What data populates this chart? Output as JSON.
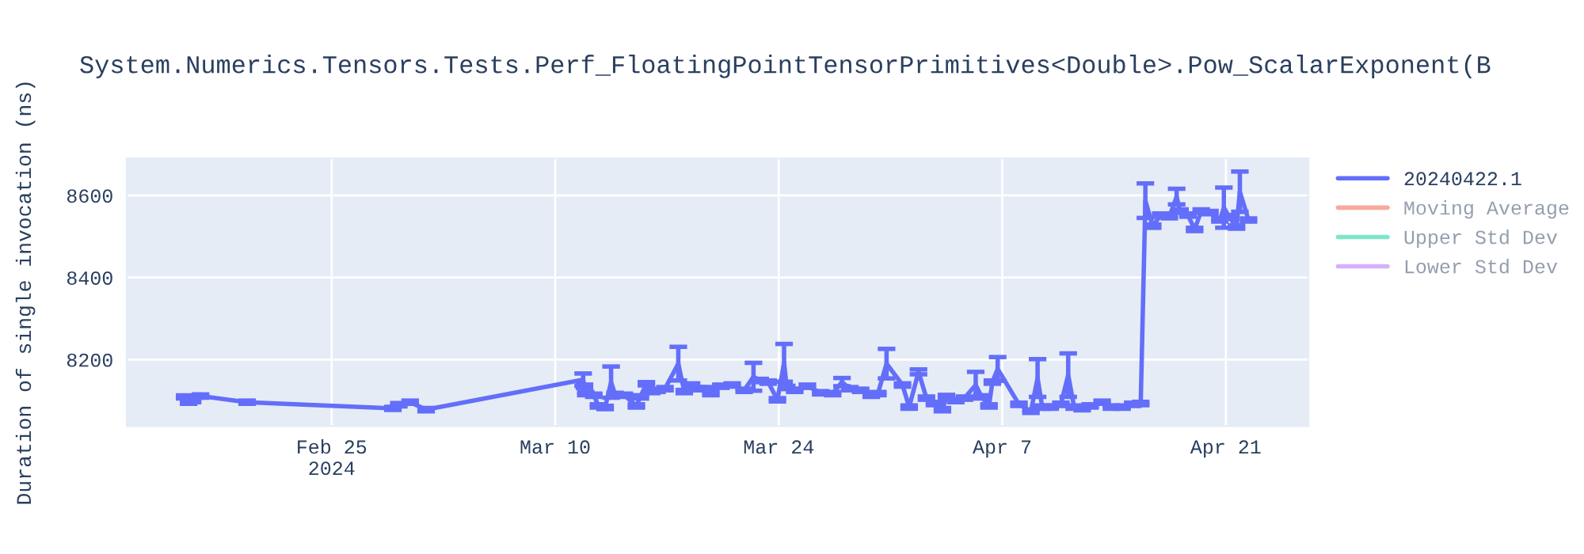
{
  "chart_data": {
    "type": "line",
    "title": "System.Numerics.Tensors.Tests.Perf_FloatingPointTensorPrimitives<Double>.Pow_ScalarExponent(B",
    "ylabel": "Duration of single invocation (ns)",
    "x": [
      "2024-02-15T19:00",
      "2024-02-16T01:00",
      "2024-02-16T07:00",
      "2024-02-16T19:00",
      "2024-02-19T17:00",
      "2024-02-28T20:00",
      "2024-02-29T05:00",
      "2024-02-29T22:00",
      "2024-03-01T22:00",
      "2024-03-11T18:00",
      "2024-03-11T20:00",
      "2024-03-11T22:00",
      "2024-03-12T10:00",
      "2024-03-12T17:00",
      "2024-03-13T03:00",
      "2024-03-13T12:00",
      "2024-03-13T18:00",
      "2024-03-14T08:00",
      "2024-03-15T02:00",
      "2024-03-15T08:00",
      "2024-03-15T17:00",
      "2024-03-16T01:00",
      "2024-03-16T09:00",
      "2024-03-16T21:00",
      "2024-03-17T17:00",
      "2024-03-18T02:00",
      "2024-03-18T13:00",
      "2024-03-18T23:00",
      "2024-03-19T10:00",
      "2024-03-19T18:00",
      "2024-03-20T09:00",
      "2024-03-21T02:00",
      "2024-03-21T20:00",
      "2024-03-22T10:00",
      "2024-03-22T20:00",
      "2024-03-23T08:00",
      "2024-03-23T22:00",
      "2024-03-24T08:00",
      "2024-03-24T12:00",
      "2024-03-25T00:00",
      "2024-03-25T19:00",
      "2024-03-26T15:00",
      "2024-03-27T09:00",
      "2024-03-27T23:00",
      "2024-03-28T11:00",
      "2024-03-29T03:00",
      "2024-03-29T19:00",
      "2024-03-30T05:00",
      "2024-03-30T18:00",
      "2024-03-31T18:00",
      "2024-04-01T04:00",
      "2024-04-01T18:00",
      "2024-04-02T06:00",
      "2024-04-02T18:00",
      "2024-04-03T06:00",
      "2024-04-03T12:00",
      "2024-04-04T02:00",
      "2024-04-04T15:00",
      "2024-04-05T08:00",
      "2024-04-05T17:00",
      "2024-04-06T04:00",
      "2024-04-06T09:00",
      "2024-04-06T17:00",
      "2024-04-08T01:00",
      "2024-04-08T19:00",
      "2024-04-09T05:00",
      "2024-04-09T12:00",
      "2024-04-10T00:00",
      "2024-04-10T16:00",
      "2024-04-11T03:00",
      "2024-04-11T12:00",
      "2024-04-12T00:00",
      "2024-04-12T12:00",
      "2024-04-13T06:00",
      "2024-04-13T20:00",
      "2024-04-14T12:00",
      "2024-04-15T04:00",
      "2024-04-15T16:00",
      "2024-04-15T23:00",
      "2024-04-16T10:00",
      "2024-04-16T22:00",
      "2024-04-17T11:00",
      "2024-04-17T22:00",
      "2024-04-18T03:00",
      "2024-04-18T15:00",
      "2024-04-19T01:00",
      "2024-04-19T11:00",
      "2024-04-20T00:00",
      "2024-04-20T15:00",
      "2024-04-20T21:00",
      "2024-04-21T05:00",
      "2024-04-21T16:00",
      "2024-04-21T21:00",
      "2024-04-22T10:00"
    ],
    "series": [
      {
        "name": "20240422.1",
        "color": "#636efa",
        "values": [
          8109,
          8096,
          8100,
          8111,
          8096,
          8081,
          8090,
          8096,
          8078,
          8151,
          8135,
          8117,
          8113,
          8087,
          8083,
          8145,
          8115,
          8113,
          8087,
          8109,
          8141,
          8122,
          8125,
          8129,
          8190,
          8122,
          8138,
          8129,
          8129,
          8117,
          8135,
          8138,
          8125,
          8158,
          8149,
          8145,
          8102,
          8192,
          8132,
          8125,
          8135,
          8119,
          8117,
          8145,
          8129,
          8125,
          8113,
          8117,
          8190,
          8138,
          8084,
          8170,
          8106,
          8093,
          8078,
          8110,
          8100,
          8106,
          8138,
          8109,
          8087,
          8145,
          8177,
          8091,
          8074,
          8155,
          8084,
          8084,
          8091,
          8162,
          8084,
          8080,
          8087,
          8096,
          8084,
          8084,
          8091,
          8093,
          8587,
          8525,
          8552,
          8548,
          8597,
          8562,
          8552,
          8517,
          8562,
          8558,
          8540,
          8570,
          8548,
          8523,
          8609,
          8540
        ],
        "errors": [
          4,
          4,
          4,
          4,
          4,
          4,
          4,
          4,
          4,
          15,
          4,
          4,
          4,
          4,
          4,
          38,
          4,
          4,
          4,
          4,
          4,
          4,
          4,
          4,
          41,
          4,
          4,
          4,
          4,
          4,
          4,
          4,
          4,
          34,
          4,
          4,
          4,
          46,
          4,
          4,
          4,
          4,
          4,
          10,
          4,
          4,
          4,
          4,
          36,
          4,
          4,
          6,
          4,
          4,
          4,
          4,
          4,
          4,
          32,
          4,
          4,
          4,
          29,
          4,
          4,
          46,
          4,
          4,
          4,
          53,
          4,
          4,
          4,
          4,
          4,
          4,
          4,
          4,
          42,
          4,
          4,
          4,
          19,
          4,
          4,
          4,
          4,
          4,
          4,
          49,
          4,
          4,
          49,
          4
        ]
      },
      {
        "name": "Moving Average",
        "color": "#ef553b",
        "values": [
          null,
          null,
          null,
          null,
          null,
          null,
          null,
          null,
          null,
          null,
          null,
          null,
          null,
          null,
          null,
          null,
          null,
          null,
          null,
          null,
          null,
          null,
          null,
          null,
          null,
          null,
          null,
          null,
          null,
          null,
          null,
          null,
          null,
          null,
          null,
          null,
          null,
          null,
          null,
          null,
          null,
          null,
          null,
          null,
          null,
          null,
          null,
          null,
          null,
          null,
          null,
          null,
          null,
          null,
          null,
          null,
          null,
          null,
          null,
          null,
          null,
          null,
          null,
          null,
          null,
          null,
          null,
          null,
          null,
          null,
          null,
          null,
          null,
          null,
          null,
          null,
          null,
          null,
          null,
          null,
          null,
          null,
          null,
          null,
          null,
          null,
          null,
          null,
          null,
          null,
          null,
          null,
          null,
          null
        ]
      },
      {
        "name": "Upper Std Dev",
        "color": "#00cc96",
        "values": [
          null,
          null,
          null,
          null,
          null,
          null,
          null,
          null,
          null,
          null,
          null,
          null,
          null,
          null,
          null,
          null,
          null,
          null,
          null,
          null,
          null,
          null,
          null,
          null,
          null,
          null,
          null,
          null,
          null,
          null,
          null,
          null,
          null,
          null,
          null,
          null,
          null,
          null,
          null,
          null,
          null,
          null,
          null,
          null,
          null,
          null,
          null,
          null,
          null,
          null,
          null,
          null,
          null,
          null,
          null,
          null,
          null,
          null,
          null,
          null,
          null,
          null,
          null,
          null,
          null,
          null,
          null,
          null,
          null,
          null,
          null,
          null,
          null,
          null,
          null,
          null,
          null,
          null,
          null,
          null,
          null,
          null,
          null,
          null,
          null,
          null,
          null,
          null,
          null,
          null,
          null,
          null,
          null,
          null
        ]
      },
      {
        "name": "Lower Std Dev",
        "color": "#ab63fa",
        "values": [
          null,
          null,
          null,
          null,
          null,
          null,
          null,
          null,
          null,
          null,
          null,
          null,
          null,
          null,
          null,
          null,
          null,
          null,
          null,
          null,
          null,
          null,
          null,
          null,
          null,
          null,
          null,
          null,
          null,
          null,
          null,
          null,
          null,
          null,
          null,
          null,
          null,
          null,
          null,
          null,
          null,
          null,
          null,
          null,
          null,
          null,
          null,
          null,
          null,
          null,
          null,
          null,
          null,
          null,
          null,
          null,
          null,
          null,
          null,
          null,
          null,
          null,
          null,
          null,
          null,
          null,
          null,
          null,
          null,
          null,
          null,
          null,
          null,
          null,
          null,
          null,
          null,
          null,
          null,
          null,
          null,
          null,
          null,
          null,
          null,
          null,
          null,
          null,
          null,
          null,
          null,
          null,
          null,
          null
        ]
      }
    ],
    "xlim": [
      "2024-02-12T04:00",
      "2024-04-26T04:00"
    ],
    "xticks": [
      {
        "value": "2024-02-25",
        "label": "Feb 25\n2024"
      },
      {
        "value": "2024-03-10",
        "label": "Mar 10"
      },
      {
        "value": "2024-03-24",
        "label": "Mar 24"
      },
      {
        "value": "2024-04-07",
        "label": "Apr 7"
      },
      {
        "value": "2024-04-21",
        "label": "Apr 21"
      }
    ],
    "ylim": [
      8038,
      8690
    ],
    "yticks": [
      8200,
      8400,
      8600
    ],
    "grid": true,
    "legend": "right",
    "line_style": "solid"
  }
}
